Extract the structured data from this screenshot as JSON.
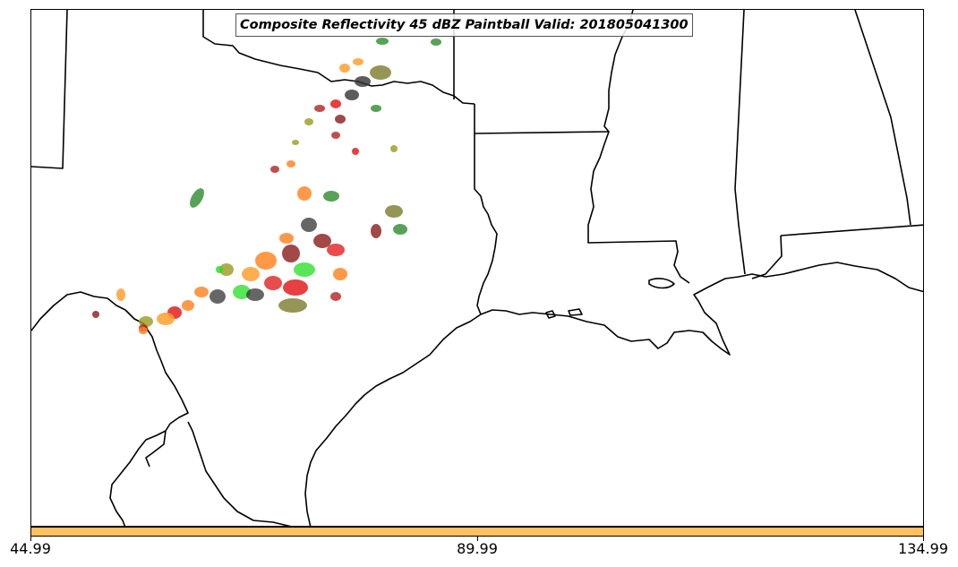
{
  "title": "Composite Reflectivity 45 dBZ Paintball Valid: 201805041300",
  "colorbar": {
    "color": "#ffc060",
    "ticks": [
      "44.99",
      "89.99",
      "134.99"
    ]
  },
  "map_region": "Southern Plains and Gulf Coast, United States",
  "paintball_colors": [
    "#2e8b2e",
    "#7a7a2a",
    "#ff7f1a",
    "#e01010",
    "#9a9a20",
    "#8b1a1a",
    "#333333",
    "#22dd22",
    "#ffa030",
    "#b22222"
  ]
}
